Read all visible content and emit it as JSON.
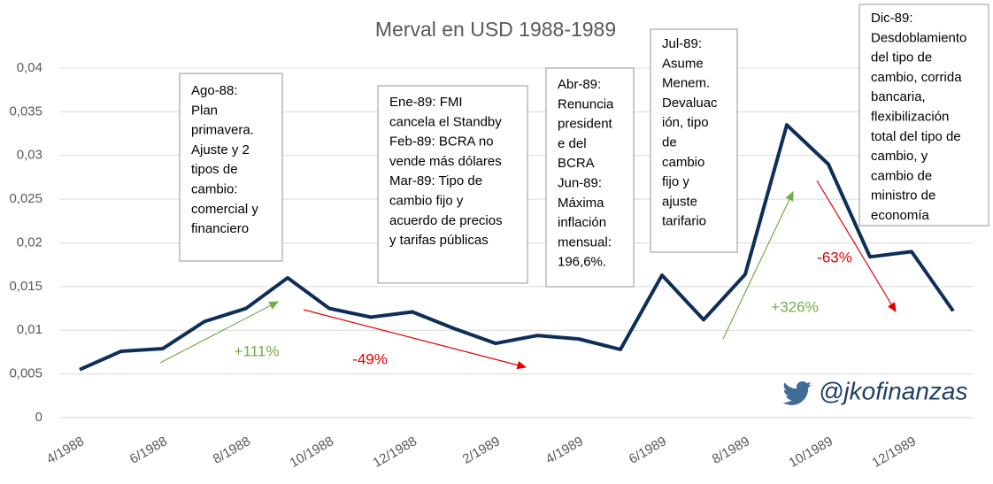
{
  "chart_data": {
    "type": "line",
    "title": "Merval en USD 1988-1989",
    "categories": [
      "4/1988",
      null,
      "6/1988",
      null,
      "8/1988",
      null,
      "10/1988",
      null,
      "12/1988",
      null,
      "2/1989",
      null,
      "4/1989",
      null,
      "6/1989",
      null,
      "8/1989",
      null,
      "10/1989",
      null,
      "12/1989",
      null
    ],
    "series": [
      {
        "name": "Merval en USD",
        "color": "#0e2e5a",
        "values": [
          0.0055,
          0.0076,
          0.0079,
          0.011,
          0.0125,
          0.016,
          0.0125,
          0.0115,
          0.0121,
          0.0102,
          0.0085,
          0.0094,
          0.009,
          0.0078,
          0.0163,
          0.0112,
          0.0164,
          0.0335,
          0.029,
          0.0184,
          0.019,
          0.0122
        ]
      }
    ],
    "ylim": [
      0,
      0.04
    ],
    "yticks": [
      0,
      {
        "value": 0.005,
        "label": "0,005"
      },
      {
        "value": 0.01,
        "label": "0,01"
      },
      {
        "value": 0.015,
        "label": "0,015"
      },
      {
        "value": 0.02,
        "label": "0,02"
      },
      {
        "value": 0.025,
        "label": "0,025"
      },
      {
        "value": 0.03,
        "label": "0,03"
      },
      {
        "value": 0.035,
        "label": "0,035"
      },
      {
        "value": 0.04,
        "label": "0,04"
      }
    ],
    "grid": true,
    "annotations": [
      [
        "Ago-88:",
        "Plan",
        "primavera.",
        "Ajuste y 2",
        "tipos de",
        "cambio:",
        "comercial y",
        "financiero"
      ],
      [
        "Ene-89: FMI",
        "cancela el Standby",
        "Feb-89: BCRA no",
        "vende más dólares",
        "Mar-89: Tipo de",
        "cambio fijo y",
        "acuerdo de precios",
        "y tarifas públicas"
      ],
      [
        "Abr-89:",
        "Renuncia",
        "president",
        "e del",
        "BCRA",
        "Jun-89:",
        "Máxima",
        "inflación",
        "mensual:",
        "196,6%."
      ],
      [
        "Jul-89:",
        "Asume",
        "Menem.",
        "Devaluac",
        "ión, tipo",
        "de",
        "cambio",
        "fijo y",
        "ajuste",
        "tarifario"
      ],
      [
        "Dic-89:",
        "Desdoblamiento",
        "del tipo de",
        "cambio, corrida",
        "bancaria,",
        "flexibilización",
        "total del tipo de",
        "cambio, y",
        "cambio de",
        "ministro de",
        "economía"
      ]
    ],
    "changes": [
      "+111%",
      "-49%",
      "+326%",
      "-63%"
    ],
    "watermark": "@jkofinanzas"
  }
}
